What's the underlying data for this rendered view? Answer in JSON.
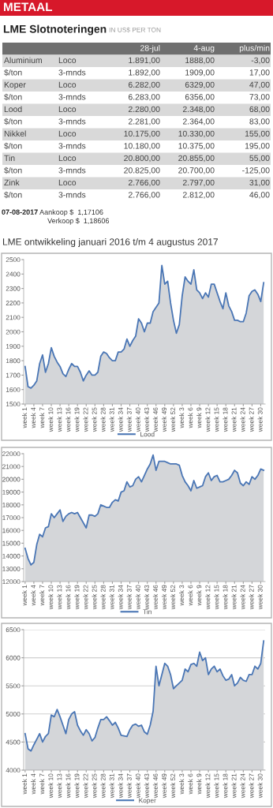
{
  "chart_data": [
    {
      "type": "other",
      "title": "LME Slotnoteringen",
      "subtitle": "IN US$ PER TON",
      "categories": [
        "28-jul",
        "4-aug",
        "plus/min"
      ],
      "y_categories": [
        "Aluminium",
        "$/ton",
        "Koper",
        "$/ton",
        "Lood",
        "$/ton",
        "Nikkel",
        "$/ton",
        "Tin",
        "$/ton",
        "Zink",
        "$/ton"
      ],
      "y2_categories": [
        "Loco",
        "3-mnds",
        "Loco",
        "3-mnds",
        "Loco",
        "3-mnds",
        "Loco",
        "3-mnds",
        "Loco",
        "3-mnds",
        "Loco",
        "3-mnds"
      ],
      "cell_labels": [
        [
          "1.891,00",
          "1888,00",
          "-3,00"
        ],
        [
          "1.892,00",
          "1909,00",
          "17,00"
        ],
        [
          "6.282,00",
          "6329,00",
          "47,00"
        ],
        [
          "6.283,00",
          "6356,00",
          "73,00"
        ],
        [
          "2.280,00",
          "2.348,00",
          "68,00"
        ],
        [
          "2.281,00",
          "2.364,00",
          "83,00"
        ],
        [
          "10.175,00",
          "10.330,00",
          "155,00"
        ],
        [
          "10.180,00",
          "10.375,00",
          "195,00"
        ],
        [
          "20.800,00",
          "20.855,00",
          "55,00"
        ],
        [
          "20.825,00",
          "20.700,00",
          "-125,00"
        ],
        [
          "2.766,00",
          "2.797,00",
          "31,00"
        ],
        [
          "2.766,00",
          "2.812,00",
          "46,00"
        ]
      ],
      "annotations": [
        "METAAL",
        "07-08-2017",
        "Aankoop $  1,17106",
        "Verkoop $  1,18606",
        "LME ontwikkeling januari 2016 t/m 4 augustus 2017"
      ]
    },
    {
      "type": "area",
      "categories": [
        "week 1",
        null,
        null,
        "week 4",
        null,
        null,
        "week 7",
        null,
        null,
        "week 10",
        null,
        null,
        "week 13",
        null,
        null,
        "week 16",
        null,
        null,
        "week 19",
        null,
        null,
        "week 22",
        null,
        null,
        "week 25",
        null,
        null,
        "week 28",
        null,
        null,
        "week 31",
        null,
        null,
        "week 34",
        null,
        null,
        "week 37",
        null,
        null,
        "week 40",
        null,
        null,
        "week 43",
        null,
        null,
        "week 46",
        null,
        null,
        "week 49",
        null,
        null,
        "week 52",
        null,
        null,
        "week 3",
        null,
        null,
        "week 6",
        null,
        null,
        "week 9",
        null,
        null,
        "week 12",
        null,
        null,
        "week 15",
        null,
        null,
        "week 18",
        null,
        null,
        "week 21",
        null,
        null,
        "week 24",
        null,
        null,
        "week 27",
        null,
        null,
        "week 30",
        null
      ],
      "series": [
        {
          "name": "Lood",
          "color": "#4a76b5",
          "values": [
            1760,
            1620,
            1610,
            1630,
            1660,
            1780,
            1840,
            1720,
            1780,
            1890,
            1830,
            1790,
            1760,
            1710,
            1690,
            1740,
            1780,
            1760,
            1760,
            1720,
            1660,
            1700,
            1730,
            1700,
            1700,
            1720,
            1830,
            1860,
            1850,
            1820,
            1800,
            1800,
            1860,
            1860,
            1880,
            1950,
            1900,
            1940,
            1970,
            2090,
            2060,
            2000,
            2060,
            2060,
            2140,
            2170,
            2200,
            2460,
            2330,
            2350,
            2200,
            2080,
            1990,
            2050,
            2250,
            2380,
            2350,
            2330,
            2430,
            2290,
            2270,
            2230,
            2270,
            2240,
            2330,
            2330,
            2270,
            2210,
            2160,
            2270,
            2180,
            2140,
            2080,
            2080,
            2070,
            2070,
            2130,
            2250,
            2280,
            2290,
            2260,
            2210,
            2340
          ]
        }
      ],
      "ylim": [
        1500,
        2500
      ],
      "yticks": [
        1500,
        1600,
        1700,
        1800,
        1900,
        2000,
        2100,
        2200,
        2300,
        2400,
        2500
      ],
      "grid": false,
      "legend": "bottom"
    },
    {
      "type": "area",
      "categories": [
        "week 1",
        null,
        null,
        "week 4",
        null,
        null,
        "week 7",
        null,
        null,
        "week 10",
        null,
        null,
        "week 13",
        null,
        null,
        "week 16",
        null,
        null,
        "week 19",
        null,
        null,
        "week 22",
        null,
        null,
        "week 25",
        null,
        null,
        "week 28",
        null,
        null,
        "week 31",
        null,
        null,
        "week 34",
        null,
        null,
        "week 37",
        null,
        null,
        "week 40",
        null,
        null,
        "week 43",
        null,
        null,
        "week 46",
        null,
        null,
        "week 49",
        null,
        null,
        "week 52",
        null,
        null,
        "week 3",
        null,
        null,
        "week 6",
        null,
        null,
        "week 9",
        null,
        null,
        "week 12",
        null,
        null,
        "week 15",
        null,
        null,
        "week 18",
        null,
        null,
        "week 21",
        null,
        null,
        "week 24",
        null,
        null,
        "week 27",
        null,
        null,
        "week 30",
        null
      ],
      "series": [
        {
          "name": "Tin",
          "color": "#4a76b5",
          "values": [
            14600,
            13800,
            13300,
            13500,
            14900,
            15700,
            15500,
            16200,
            16300,
            17300,
            17000,
            17300,
            17600,
            16700,
            17100,
            17300,
            17400,
            17300,
            17400,
            17000,
            16600,
            16200,
            17200,
            17200,
            17100,
            17300,
            18000,
            17900,
            17800,
            17800,
            18200,
            18400,
            18300,
            19000,
            19100,
            19800,
            19400,
            19500,
            20000,
            20200,
            19800,
            20300,
            20800,
            21200,
            21900,
            20700,
            21400,
            21400,
            21400,
            21300,
            21200,
            21200,
            21200,
            21100,
            20300,
            19800,
            19500,
            19100,
            19900,
            19300,
            19400,
            19500,
            20200,
            20500,
            19900,
            20200,
            20300,
            19800,
            19800,
            19900,
            20000,
            20300,
            20700,
            20500,
            19700,
            19500,
            19800,
            19600,
            20200,
            20000,
            20300,
            20800,
            20700
          ]
        }
      ],
      "ylim": [
        12000,
        22000
      ],
      "yticks": [
        12000,
        13000,
        14000,
        15000,
        16000,
        17000,
        18000,
        19000,
        20000,
        21000,
        22000
      ],
      "grid": false,
      "legend": "bottom"
    },
    {
      "type": "area",
      "categories": [
        "week 1",
        null,
        null,
        "week 4",
        null,
        null,
        "week 7",
        null,
        null,
        "week 10",
        null,
        null,
        "week 13",
        null,
        null,
        "week 16",
        null,
        null,
        "week 19",
        null,
        null,
        "week 22",
        null,
        null,
        "week 25",
        null,
        null,
        "week 28",
        null,
        null,
        "week 31",
        null,
        null,
        "week 34",
        null,
        null,
        "week 37",
        null,
        null,
        "week 40",
        null,
        null,
        "week 43",
        null,
        null,
        "week 46",
        null,
        null,
        "week 49",
        null,
        null,
        "week 52",
        null,
        null,
        "week 3",
        null,
        null,
        "week 6",
        null,
        null,
        "week 9",
        null,
        null,
        "week 12",
        null,
        null,
        "week 15",
        null,
        null,
        "week 18",
        null,
        null,
        "week 21",
        null,
        null,
        "week 24",
        null,
        null,
        "week 27",
        null,
        null,
        "week 30",
        null
      ],
      "series": [
        {
          "name": "Koper",
          "color": "#4a76b5",
          "values": [
            4650,
            4380,
            4340,
            4450,
            4550,
            4650,
            4500,
            4600,
            4650,
            4980,
            4950,
            5080,
            4950,
            4800,
            4650,
            4900,
            5000,
            5040,
            4800,
            4700,
            4620,
            4720,
            4650,
            4520,
            4580,
            4750,
            4900,
            4900,
            4950,
            4880,
            4800,
            4850,
            4750,
            4620,
            4610,
            4600,
            4720,
            4800,
            4820,
            4780,
            4800,
            4680,
            4640,
            4800,
            5050,
            5850,
            5500,
            5700,
            5900,
            5850,
            5700,
            5450,
            5500,
            5550,
            5600,
            5800,
            5750,
            5880,
            5900,
            5850,
            6100,
            5950,
            6000,
            5700,
            5800,
            5850,
            5750,
            5800,
            5680,
            5600,
            5620,
            5700,
            5500,
            5550,
            5650,
            5600,
            5580,
            5700,
            5700,
            5850,
            5800,
            5900,
            6300
          ]
        }
      ],
      "ylim": [
        4000,
        6500
      ],
      "yticks": [
        4000,
        4500,
        5000,
        5500,
        6000,
        6500
      ],
      "grid": "y",
      "legend": "bottom"
    }
  ]
}
